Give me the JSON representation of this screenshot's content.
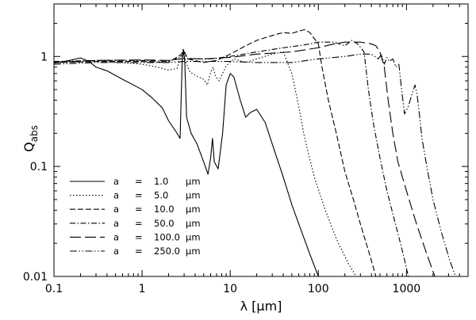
{
  "chart_data": {
    "type": "line",
    "xlabel": "λ  [μm]",
    "ylabel_main": "Q",
    "ylabel_sub": "abs",
    "xscale": "log",
    "yscale": "log",
    "xlim": [
      0.1,
      5000
    ],
    "ylim": [
      0.01,
      3
    ],
    "grid": false,
    "legend_position": "bottom-left",
    "xticks": [
      {
        "value": 0.1,
        "label": "0.1"
      },
      {
        "value": 1,
        "label": "1"
      },
      {
        "value": 10,
        "label": "10"
      },
      {
        "value": 100,
        "label": "100"
      },
      {
        "value": 1000,
        "label": "1000"
      }
    ],
    "yticks": [
      {
        "value": 0.01,
        "label": "0.01"
      },
      {
        "value": 0.1,
        "label": "0.1"
      },
      {
        "value": 1,
        "label": "1"
      }
    ],
    "series": [
      {
        "name": "a = 1.0 μm",
        "legend": {
          "a": "a",
          "eq": "=",
          "value": "1.0",
          "unit": "μm"
        },
        "dash": "",
        "points": [
          [
            0.1,
            0.87
          ],
          [
            0.15,
            0.92
          ],
          [
            0.2,
            0.97
          ],
          [
            0.25,
            0.9
          ],
          [
            0.3,
            0.8
          ],
          [
            0.4,
            0.74
          ],
          [
            0.6,
            0.62
          ],
          [
            0.8,
            0.55
          ],
          [
            1,
            0.5
          ],
          [
            1.3,
            0.42
          ],
          [
            1.7,
            0.34
          ],
          [
            2.0,
            0.26
          ],
          [
            2.4,
            0.21
          ],
          [
            2.7,
            0.18
          ],
          [
            2.85,
            0.9
          ],
          [
            2.95,
            1.15
          ],
          [
            3.05,
            0.9
          ],
          [
            3.2,
            0.28
          ],
          [
            3.6,
            0.2
          ],
          [
            4.2,
            0.16
          ],
          [
            5.0,
            0.11
          ],
          [
            5.6,
            0.085
          ],
          [
            6.0,
            0.12
          ],
          [
            6.3,
            0.18
          ],
          [
            6.6,
            0.11
          ],
          [
            7.3,
            0.095
          ],
          [
            8.2,
            0.2
          ],
          [
            9.0,
            0.55
          ],
          [
            10.0,
            0.7
          ],
          [
            11.0,
            0.65
          ],
          [
            13.0,
            0.4
          ],
          [
            15.0,
            0.28
          ],
          [
            17.0,
            0.31
          ],
          [
            20.0,
            0.33
          ],
          [
            25.0,
            0.25
          ],
          [
            30.0,
            0.16
          ],
          [
            40.0,
            0.08
          ],
          [
            50.0,
            0.045
          ],
          [
            60.0,
            0.03
          ],
          [
            80.0,
            0.016
          ],
          [
            100.0,
            0.01
          ]
        ]
      },
      {
        "name": "a = 5.0 μm",
        "legend": {
          "a": "a",
          "eq": "=",
          "value": "5.0",
          "unit": "μm"
        },
        "dash": "1.5,2.5",
        "points": [
          [
            0.1,
            0.88
          ],
          [
            0.3,
            0.9
          ],
          [
            0.6,
            0.88
          ],
          [
            1.0,
            0.85
          ],
          [
            1.5,
            0.8
          ],
          [
            2.0,
            0.75
          ],
          [
            2.5,
            0.78
          ],
          [
            2.8,
            1.05
          ],
          [
            2.95,
            1.18
          ],
          [
            3.1,
            0.9
          ],
          [
            3.5,
            0.72
          ],
          [
            4.2,
            0.66
          ],
          [
            5.0,
            0.62
          ],
          [
            5.5,
            0.55
          ],
          [
            6.0,
            0.72
          ],
          [
            6.4,
            0.8
          ],
          [
            6.8,
            0.66
          ],
          [
            7.5,
            0.6
          ],
          [
            9.0,
            0.82
          ],
          [
            11.0,
            0.95
          ],
          [
            15.0,
            0.88
          ],
          [
            20.0,
            0.95
          ],
          [
            30.0,
            1.05
          ],
          [
            40.0,
            1.1
          ],
          [
            50.0,
            0.7
          ],
          [
            60.0,
            0.35
          ],
          [
            70.0,
            0.18
          ],
          [
            90.0,
            0.08
          ],
          [
            120.0,
            0.04
          ],
          [
            160.0,
            0.022
          ],
          [
            220.0,
            0.013
          ],
          [
            270.0,
            0.01
          ]
        ]
      },
      {
        "name": "a = 10.0 μm",
        "legend": {
          "a": "a",
          "eq": "=",
          "value": "10.0",
          "unit": "μm"
        },
        "dash": "7,3",
        "points": [
          [
            0.1,
            0.88
          ],
          [
            0.3,
            0.9
          ],
          [
            1.0,
            0.9
          ],
          [
            2.0,
            0.88
          ],
          [
            2.8,
            1.05
          ],
          [
            3.0,
            1.12
          ],
          [
            3.3,
            0.95
          ],
          [
            5.0,
            0.88
          ],
          [
            7.0,
            0.92
          ],
          [
            10.0,
            1.05
          ],
          [
            15.0,
            1.25
          ],
          [
            20.0,
            1.4
          ],
          [
            30.0,
            1.55
          ],
          [
            40.0,
            1.65
          ],
          [
            50.0,
            1.62
          ],
          [
            60.0,
            1.7
          ],
          [
            70.0,
            1.75
          ],
          [
            80.0,
            1.65
          ],
          [
            100.0,
            1.3
          ],
          [
            110.0,
            0.8
          ],
          [
            130.0,
            0.4
          ],
          [
            160.0,
            0.2
          ],
          [
            200.0,
            0.09
          ],
          [
            250.0,
            0.05
          ],
          [
            300.0,
            0.03
          ],
          [
            380.0,
            0.016
          ],
          [
            450.0,
            0.01
          ]
        ]
      },
      {
        "name": "a = 50.0 μm",
        "legend": {
          "a": "a",
          "eq": "=",
          "value": "50.0",
          "unit": "μm"
        },
        "dash": "7,2.5,1.5,2.5",
        "points": [
          [
            0.1,
            0.9
          ],
          [
            0.3,
            0.92
          ],
          [
            1.0,
            0.92
          ],
          [
            2.0,
            0.9
          ],
          [
            2.8,
            1.0
          ],
          [
            3.0,
            1.08
          ],
          [
            3.3,
            0.95
          ],
          [
            6.0,
            0.95
          ],
          [
            10.0,
            1.0
          ],
          [
            20.0,
            1.1
          ],
          [
            40.0,
            1.2
          ],
          [
            60.0,
            1.25
          ],
          [
            80.0,
            1.3
          ],
          [
            100.0,
            1.35
          ],
          [
            150.0,
            1.35
          ],
          [
            200.0,
            1.25
          ],
          [
            240.0,
            1.4
          ],
          [
            280.0,
            1.3
          ],
          [
            330.0,
            1.1
          ],
          [
            370.0,
            0.5
          ],
          [
            420.0,
            0.25
          ],
          [
            500.0,
            0.12
          ],
          [
            600.0,
            0.06
          ],
          [
            750.0,
            0.03
          ],
          [
            900.0,
            0.017
          ],
          [
            1050.0,
            0.01
          ]
        ]
      },
      {
        "name": "a = 100.0 μm",
        "legend": {
          "a": "a",
          "eq": "=",
          "value": "100.0",
          "unit": "μm"
        },
        "dash": "14,5",
        "points": [
          [
            0.1,
            0.88
          ],
          [
            0.3,
            0.92
          ],
          [
            1.0,
            0.93
          ],
          [
            2.0,
            0.92
          ],
          [
            3.0,
            0.96
          ],
          [
            5.0,
            0.95
          ],
          [
            10.0,
            0.98
          ],
          [
            20.0,
            1.05
          ],
          [
            50.0,
            1.1
          ],
          [
            100.0,
            1.2
          ],
          [
            150.0,
            1.3
          ],
          [
            200.0,
            1.35
          ],
          [
            300.0,
            1.35
          ],
          [
            400.0,
            1.3
          ],
          [
            450.0,
            1.25
          ],
          [
            500.0,
            1.1
          ],
          [
            560.0,
            0.8
          ],
          [
            620.0,
            0.4
          ],
          [
            700.0,
            0.2
          ],
          [
            800.0,
            0.11
          ],
          [
            1000.0,
            0.06
          ],
          [
            1300.0,
            0.03
          ],
          [
            1700.0,
            0.016
          ],
          [
            2100.0,
            0.01
          ]
        ]
      },
      {
        "name": "a = 250.0 μm",
        "legend": {
          "a": "a",
          "eq": "=",
          "value": "250.0",
          "unit": "μm"
        },
        "dash": "9,2.5,1.5,2.5,1.5,2.5",
        "points": [
          [
            0.1,
            0.85
          ],
          [
            0.3,
            0.88
          ],
          [
            1.0,
            0.88
          ],
          [
            2.0,
            0.88
          ],
          [
            3.0,
            0.9
          ],
          [
            5.0,
            0.9
          ],
          [
            10.0,
            0.9
          ],
          [
            20.0,
            0.88
          ],
          [
            50.0,
            0.88
          ],
          [
            100.0,
            0.95
          ],
          [
            200.0,
            1.0
          ],
          [
            300.0,
            1.05
          ],
          [
            400.0,
            1.05
          ],
          [
            480.0,
            0.95
          ],
          [
            520.0,
            1.05
          ],
          [
            560.0,
            0.85
          ],
          [
            600.0,
            0.98
          ],
          [
            640.0,
            0.9
          ],
          [
            700.0,
            0.95
          ],
          [
            760.0,
            0.8
          ],
          [
            820.0,
            0.85
          ],
          [
            880.0,
            0.5
          ],
          [
            950.0,
            0.3
          ],
          [
            1050.0,
            0.35
          ],
          [
            1150.0,
            0.45
          ],
          [
            1250.0,
            0.55
          ],
          [
            1320.0,
            0.45
          ],
          [
            1400.0,
            0.3
          ],
          [
            1500.0,
            0.18
          ],
          [
            1700.0,
            0.1
          ],
          [
            2000.0,
            0.05
          ],
          [
            2500.0,
            0.025
          ],
          [
            3100.0,
            0.014
          ],
          [
            3600.0,
            0.01
          ]
        ]
      }
    ]
  }
}
